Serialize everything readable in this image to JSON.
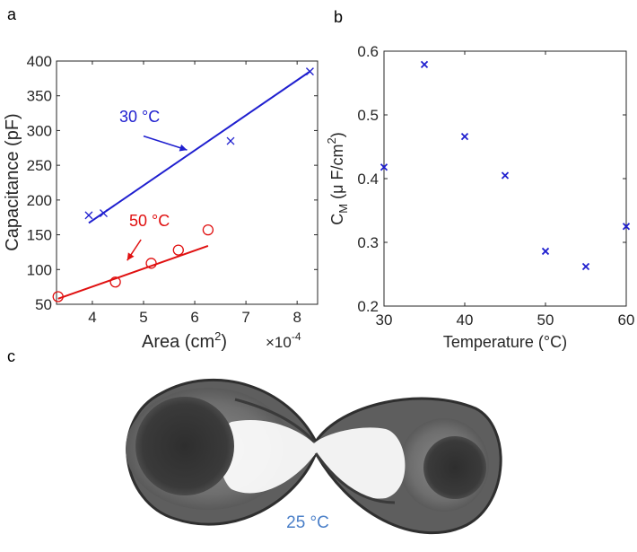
{
  "panel_labels": {
    "a": "a",
    "b": "b",
    "c": "c"
  },
  "chart_data": [
    {
      "panel": "a",
      "type": "scatter",
      "xlabel": "Area (cm",
      "xlabel_sup": "2",
      "xlabel_end": ")",
      "x_multiplier_base": "×10",
      "x_multiplier_exp": "-4",
      "ylabel": "Capacitance (pF)",
      "xlim": [
        3.3,
        8.4
      ],
      "ylim": [
        50,
        400
      ],
      "xticks": [
        4,
        5,
        6,
        7,
        8
      ],
      "yticks": [
        50,
        100,
        150,
        200,
        250,
        300,
        350,
        400
      ],
      "series": [
        {
          "name": "30 °C",
          "color": "#1f1fcf",
          "marker": "x",
          "points": [
            [
              3.93,
              178
            ],
            [
              4.22,
              181
            ],
            [
              6.7,
              285
            ],
            [
              8.25,
              385
            ]
          ],
          "fit": [
            [
              3.93,
              167
            ],
            [
              8.25,
              385
            ]
          ]
        },
        {
          "name": "50 °C",
          "color": "#e01010",
          "marker": "o",
          "points": [
            [
              3.33,
              61
            ],
            [
              4.45,
              82
            ],
            [
              5.15,
              109
            ],
            [
              5.68,
              128
            ],
            [
              6.26,
              157
            ]
          ],
          "fit": [
            [
              3.33,
              58
            ],
            [
              6.26,
              134
            ]
          ]
        }
      ],
      "annotations": [
        {
          "text": "30 °C",
          "color": "#1f1fcf",
          "arrow_from": [
            5.0,
            292
          ],
          "arrow_to": [
            5.85,
            272
          ]
        },
        {
          "text": "50 °C",
          "color": "#e01010",
          "arrow_from": [
            4.95,
            143
          ],
          "arrow_to": [
            4.68,
            113
          ]
        }
      ]
    },
    {
      "panel": "b",
      "type": "scatter",
      "xlabel": "Temperature (°C)",
      "ylabel_pre": "C",
      "ylabel_sub": "M",
      "ylabel_mid": " (μ F/cm",
      "ylabel_sup": "2",
      "ylabel_end": ")",
      "xlim": [
        30,
        60
      ],
      "ylim": [
        0.2,
        0.6
      ],
      "xticks": [
        30,
        40,
        50,
        60
      ],
      "yticks": [
        0.2,
        0.3,
        0.4,
        0.5,
        0.6
      ],
      "series": [
        {
          "name": "C_M",
          "color": "#1f1fcf",
          "marker": "x",
          "points": [
            [
              30,
              0.418
            ],
            [
              35,
              0.579
            ],
            [
              40,
              0.466
            ],
            [
              45,
              0.405
            ],
            [
              50,
              0.286
            ],
            [
              55,
              0.262
            ],
            [
              60,
              0.325
            ]
          ]
        }
      ]
    }
  ],
  "photo": {
    "caption": "25 °C",
    "caption_color": "#4a7fc8"
  }
}
